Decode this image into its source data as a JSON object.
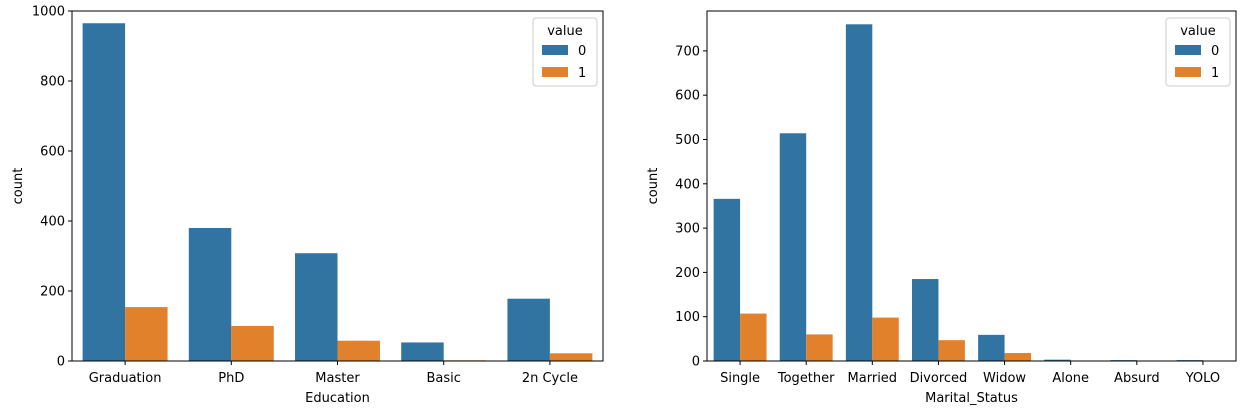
{
  "chart_data": [
    {
      "type": "bar",
      "xlabel": "Education",
      "ylabel": "count",
      "ylim": [
        0,
        1000
      ],
      "yticks": [
        "0",
        "200",
        "400",
        "600",
        "800",
        "1000"
      ],
      "categories": [
        "Graduation",
        "PhD",
        "Master",
        "Basic",
        "2n Cycle"
      ],
      "series": [
        {
          "name": "0",
          "color": "#3274a1",
          "values": [
            965,
            380,
            308,
            53,
            178
          ]
        },
        {
          "name": "1",
          "color": "#e1812c",
          "values": [
            154,
            100,
            58,
            2,
            22
          ]
        }
      ],
      "legend": {
        "title": "value",
        "placement": "top-right"
      }
    },
    {
      "type": "bar",
      "xlabel": "Marital_Status",
      "ylabel": "count",
      "ylim": [
        0,
        790
      ],
      "yticks": [
        "0",
        "100",
        "200",
        "300",
        "400",
        "500",
        "600",
        "700"
      ],
      "categories": [
        "Single",
        "Together",
        "Married",
        "Divorced",
        "Widow",
        "Alone",
        "Absurd",
        "YOLO"
      ],
      "series": [
        {
          "name": "0",
          "color": "#3274a1",
          "values": [
            366,
            514,
            760,
            185,
            59,
            3,
            2,
            2
          ]
        },
        {
          "name": "1",
          "color": "#e1812c",
          "values": [
            107,
            60,
            98,
            47,
            18,
            0,
            1,
            1
          ]
        }
      ],
      "legend": {
        "title": "value",
        "placement": "top-right"
      }
    }
  ]
}
